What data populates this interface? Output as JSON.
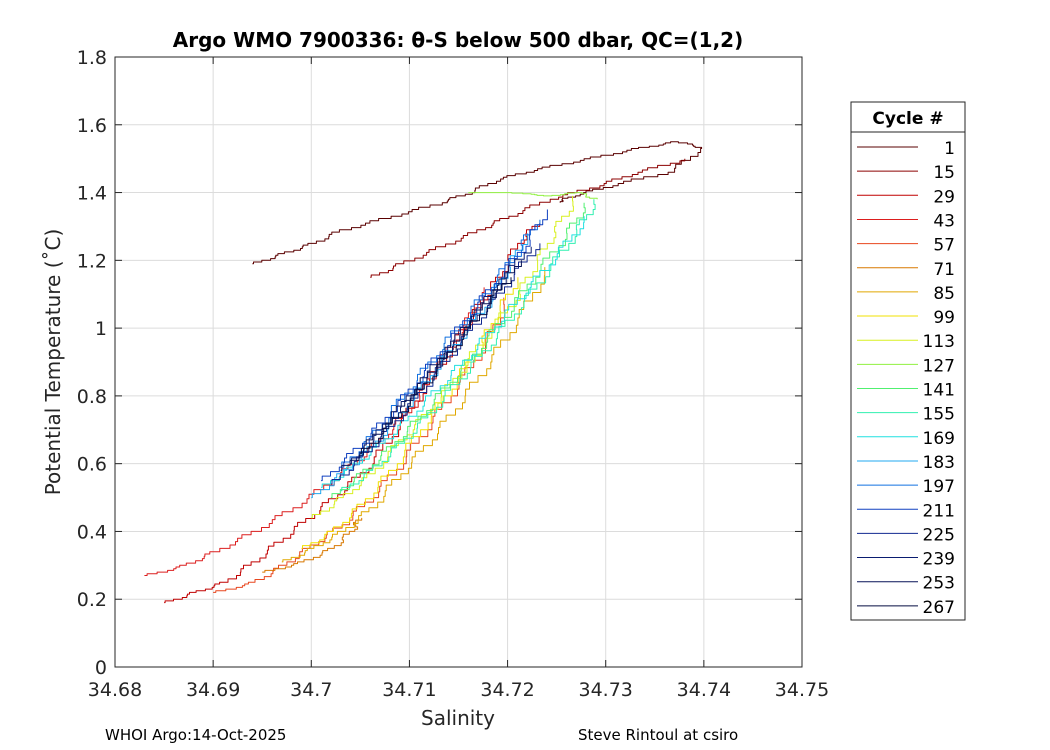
{
  "chart_data": {
    "type": "line",
    "title": "Argo WMO 7900336: θ-S below 500 dbar,  QC=(1,2)",
    "xlabel": "Salinity",
    "ylabel": "Potential Temperature (˚C)",
    "xlim": [
      34.68,
      34.75
    ],
    "ylim": [
      0,
      1.8
    ],
    "xticks": [
      "34.68",
      "34.69",
      "34.7",
      "34.71",
      "34.72",
      "34.73",
      "34.74",
      "34.75"
    ],
    "yticks": [
      "0",
      "0.2",
      "0.4",
      "0.6",
      "0.8",
      "1",
      "1.2",
      "1.4",
      "1.6",
      "1.8"
    ],
    "grid": true,
    "legend": {
      "title": "Cycle #",
      "placement": "right",
      "entries": [
        {
          "label": "1",
          "color": "#5a0000"
        },
        {
          "label": "15",
          "color": "#8c0000"
        },
        {
          "label": "29",
          "color": "#c00000"
        },
        {
          "label": "43",
          "color": "#dc1e1e"
        },
        {
          "label": "57",
          "color": "#e8461e"
        },
        {
          "label": "71",
          "color": "#d87800"
        },
        {
          "label": "85",
          "color": "#e0a800"
        },
        {
          "label": "99",
          "color": "#f0e000"
        },
        {
          "label": "113",
          "color": "#d8f020"
        },
        {
          "label": "127",
          "color": "#90f040"
        },
        {
          "label": "141",
          "color": "#50f070"
        },
        {
          "label": "155",
          "color": "#30f0b0"
        },
        {
          "label": "169",
          "color": "#20e0e0"
        },
        {
          "label": "183",
          "color": "#20a8f0"
        },
        {
          "label": "197",
          "color": "#1070e0"
        },
        {
          "label": "211",
          "color": "#1040c0"
        },
        {
          "label": "225",
          "color": "#102890"
        },
        {
          "label": "239",
          "color": "#0a1c70"
        },
        {
          "label": "253",
          "color": "#081458"
        },
        {
          "label": "267",
          "color": "#050c40"
        }
      ]
    },
    "series": [
      {
        "name": "1",
        "color": "#5a0000",
        "points": [
          [
            34.694,
            1.19
          ],
          [
            34.697,
            1.22
          ],
          [
            34.7,
            1.25
          ],
          [
            34.703,
            1.29
          ],
          [
            34.708,
            1.33
          ],
          [
            34.713,
            1.37
          ],
          [
            34.716,
            1.4
          ],
          [
            34.719,
            1.44
          ],
          [
            34.723,
            1.47
          ],
          [
            34.728,
            1.5
          ],
          [
            34.733,
            1.53
          ],
          [
            34.737,
            1.55
          ],
          [
            34.74,
            1.53
          ],
          [
            34.737,
            1.46
          ],
          [
            34.731,
            1.42
          ],
          [
            34.727,
            1.39
          ],
          [
            34.725,
            1.37
          ]
        ]
      },
      {
        "name": "15",
        "color": "#8c0000",
        "points": [
          [
            34.706,
            1.15
          ],
          [
            34.709,
            1.19
          ],
          [
            34.713,
            1.24
          ],
          [
            34.717,
            1.29
          ],
          [
            34.72,
            1.33
          ],
          [
            34.724,
            1.38
          ],
          [
            34.729,
            1.42
          ],
          [
            34.733,
            1.46
          ],
          [
            34.738,
            1.5
          ]
        ]
      },
      {
        "name": "29",
        "color": "#c00000",
        "points": [
          [
            34.685,
            0.19
          ],
          [
            34.688,
            0.22
          ],
          [
            34.691,
            0.25
          ],
          [
            34.694,
            0.31
          ],
          [
            34.697,
            0.38
          ],
          [
            34.7,
            0.45
          ],
          [
            34.703,
            0.52
          ],
          [
            34.706,
            0.6
          ],
          [
            34.709,
            0.72
          ],
          [
            34.712,
            0.85
          ],
          [
            34.715,
            0.98
          ],
          [
            34.717,
            1.07
          ],
          [
            34.719,
            1.15
          ],
          [
            34.721,
            1.25
          ],
          [
            34.723,
            1.31
          ]
        ]
      },
      {
        "name": "43",
        "color": "#dc1e1e",
        "points": [
          [
            34.683,
            0.27
          ],
          [
            34.687,
            0.3
          ],
          [
            34.69,
            0.34
          ],
          [
            34.694,
            0.4
          ],
          [
            34.698,
            0.47
          ],
          [
            34.702,
            0.55
          ],
          [
            34.705,
            0.62
          ],
          [
            34.708,
            0.7
          ],
          [
            34.711,
            0.8
          ],
          [
            34.713,
            0.9
          ],
          [
            34.716,
            1.03
          ],
          [
            34.718,
            1.12
          ]
        ]
      },
      {
        "name": "57",
        "color": "#e8461e",
        "points": [
          [
            34.69,
            0.22
          ],
          [
            34.694,
            0.25
          ],
          [
            34.697,
            0.3
          ],
          [
            34.7,
            0.36
          ],
          [
            34.703,
            0.42
          ],
          [
            34.706,
            0.5
          ],
          [
            34.709,
            0.6
          ],
          [
            34.712,
            0.72
          ],
          [
            34.715,
            0.84
          ],
          [
            34.718,
            0.97
          ],
          [
            34.72,
            1.09
          ]
        ]
      },
      {
        "name": "71",
        "color": "#d87800",
        "points": [
          [
            34.695,
            0.28
          ],
          [
            34.699,
            0.31
          ],
          [
            34.702,
            0.35
          ],
          [
            34.704,
            0.4
          ],
          [
            34.705,
            0.44
          ]
        ]
      },
      {
        "name": "85",
        "color": "#e0a800",
        "points": [
          [
            34.697,
            0.31
          ],
          [
            34.7,
            0.35
          ],
          [
            34.703,
            0.4
          ],
          [
            34.706,
            0.47
          ],
          [
            34.709,
            0.57
          ],
          [
            34.712,
            0.67
          ],
          [
            34.715,
            0.78
          ],
          [
            34.718,
            0.9
          ],
          [
            34.721,
            1.03
          ],
          [
            34.724,
            1.18
          ]
        ]
      },
      {
        "name": "99",
        "color": "#f0e000",
        "points": [
          [
            34.699,
            0.35
          ],
          [
            34.702,
            0.4
          ],
          [
            34.705,
            0.48
          ],
          [
            34.708,
            0.58
          ],
          [
            34.711,
            0.7
          ],
          [
            34.714,
            0.82
          ],
          [
            34.717,
            0.94
          ],
          [
            34.719,
            1.05
          ],
          [
            34.721,
            1.15
          ]
        ]
      },
      {
        "name": "113",
        "color": "#d8f020",
        "points": [
          [
            34.7,
            0.44
          ],
          [
            34.703,
            0.5
          ],
          [
            34.706,
            0.57
          ],
          [
            34.709,
            0.67
          ],
          [
            34.712,
            0.76
          ],
          [
            34.715,
            0.87
          ],
          [
            34.718,
            0.99
          ],
          [
            34.721,
            1.1
          ],
          [
            34.723,
            1.2
          ],
          [
            34.725,
            1.3
          ],
          [
            34.727,
            1.39
          ]
        ]
      },
      {
        "name": "127",
        "color": "#90f040",
        "points": [
          [
            34.716,
            1.4
          ],
          [
            34.72,
            1.4
          ],
          [
            34.724,
            1.39
          ],
          [
            34.727,
            1.4
          ],
          [
            34.729,
            1.38
          ]
        ]
      },
      {
        "name": "141",
        "color": "#50f070",
        "points": [
          [
            34.702,
            0.5
          ],
          [
            34.705,
            0.57
          ],
          [
            34.708,
            0.65
          ],
          [
            34.711,
            0.74
          ],
          [
            34.714,
            0.84
          ],
          [
            34.717,
            0.94
          ],
          [
            34.72,
            1.05
          ],
          [
            34.723,
            1.17
          ],
          [
            34.726,
            1.28
          ],
          [
            34.728,
            1.37
          ]
        ]
      },
      {
        "name": "155",
        "color": "#30f0b0",
        "points": [
          [
            34.703,
            0.52
          ],
          [
            34.706,
            0.58
          ],
          [
            34.709,
            0.66
          ],
          [
            34.712,
            0.75
          ],
          [
            34.715,
            0.85
          ],
          [
            34.718,
            0.95
          ],
          [
            34.721,
            1.06
          ],
          [
            34.724,
            1.17
          ],
          [
            34.727,
            1.29
          ],
          [
            34.729,
            1.38
          ]
        ]
      },
      {
        "name": "169",
        "color": "#20e0e0",
        "points": [
          [
            34.701,
            0.53
          ],
          [
            34.704,
            0.59
          ],
          [
            34.707,
            0.66
          ],
          [
            34.71,
            0.74
          ],
          [
            34.713,
            0.83
          ],
          [
            34.716,
            0.92
          ],
          [
            34.719,
            1.02
          ],
          [
            34.722,
            1.12
          ],
          [
            34.725,
            1.22
          ],
          [
            34.728,
            1.33
          ]
        ]
      },
      {
        "name": "183",
        "color": "#20a8f0",
        "points": [
          [
            34.7,
            0.5
          ],
          [
            34.703,
            0.57
          ],
          [
            34.706,
            0.65
          ],
          [
            34.709,
            0.75
          ],
          [
            34.712,
            0.86
          ],
          [
            34.715,
            0.97
          ],
          [
            34.718,
            1.08
          ],
          [
            34.72,
            1.18
          ],
          [
            34.722,
            1.28
          ]
        ]
      },
      {
        "name": "197",
        "color": "#1070e0",
        "points": [
          [
            34.703,
            0.59
          ],
          [
            34.706,
            0.68
          ],
          [
            34.709,
            0.79
          ],
          [
            34.712,
            0.9
          ],
          [
            34.715,
            1.01
          ],
          [
            34.718,
            1.12
          ],
          [
            34.721,
            1.23
          ],
          [
            34.723,
            1.32
          ]
        ]
      },
      {
        "name": "211",
        "color": "#1040c0",
        "points": [
          [
            34.701,
            0.55
          ],
          [
            34.704,
            0.63
          ],
          [
            34.707,
            0.72
          ],
          [
            34.71,
            0.82
          ],
          [
            34.713,
            0.93
          ],
          [
            34.716,
            1.04
          ],
          [
            34.719,
            1.15
          ],
          [
            34.722,
            1.26
          ],
          [
            34.724,
            1.35
          ]
        ]
      },
      {
        "name": "225",
        "color": "#102890",
        "points": [
          [
            34.702,
            0.54
          ],
          [
            34.705,
            0.62
          ],
          [
            34.708,
            0.71
          ],
          [
            34.711,
            0.81
          ],
          [
            34.714,
            0.92
          ],
          [
            34.717,
            1.03
          ],
          [
            34.72,
            1.14
          ],
          [
            34.723,
            1.25
          ]
        ]
      },
      {
        "name": "239",
        "color": "#0a1c70",
        "points": [
          [
            34.704,
            0.6
          ],
          [
            34.707,
            0.7
          ],
          [
            34.71,
            0.8
          ],
          [
            34.713,
            0.91
          ],
          [
            34.716,
            1.02
          ],
          [
            34.719,
            1.13
          ],
          [
            34.722,
            1.24
          ]
        ]
      },
      {
        "name": "253",
        "color": "#081458",
        "points": [
          [
            34.703,
            0.58
          ],
          [
            34.706,
            0.67
          ],
          [
            34.709,
            0.77
          ],
          [
            34.712,
            0.87
          ],
          [
            34.715,
            0.98
          ],
          [
            34.718,
            1.09
          ],
          [
            34.721,
            1.2
          ]
        ]
      },
      {
        "name": "267",
        "color": "#050c40",
        "points": [
          [
            34.705,
            0.63
          ],
          [
            34.708,
            0.72
          ],
          [
            34.711,
            0.82
          ],
          [
            34.714,
            0.93
          ],
          [
            34.717,
            1.04
          ],
          [
            34.72,
            1.15
          ]
        ]
      }
    ]
  },
  "footer": {
    "left": "WHOI Argo:14-Oct-2025",
    "right": "Steve Rintoul at csiro"
  }
}
